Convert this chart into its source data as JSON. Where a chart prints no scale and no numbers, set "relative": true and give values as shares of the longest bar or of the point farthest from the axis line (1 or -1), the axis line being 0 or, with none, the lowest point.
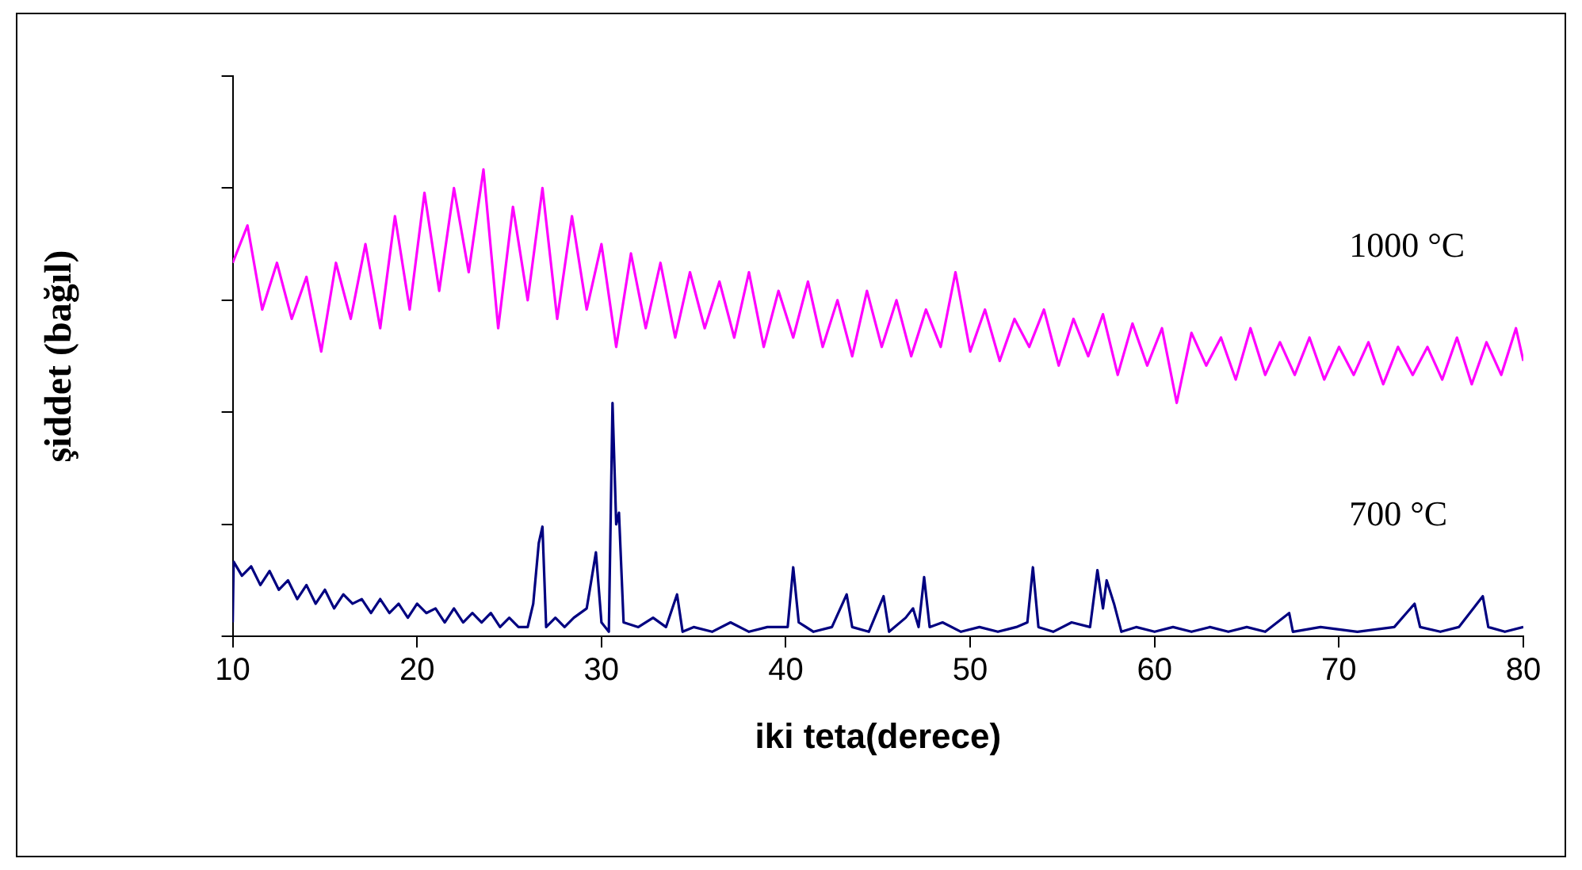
{
  "chart_data": {
    "type": "line",
    "relative": true,
    "xlabel": "iki teta(derece)",
    "ylabel": "şiddet (bağıl)",
    "xlim": [
      10,
      80
    ],
    "xticks": [
      10,
      20,
      30,
      40,
      50,
      60,
      70,
      80
    ],
    "tick_labels": "x",
    "grid": false,
    "legend": false,
    "marker": "none",
    "line_style": "solid",
    "series": [
      {
        "name": "1000 °C",
        "color": "#ff00ff",
        "x": [
          10,
          10.8,
          11.6,
          12.4,
          13.2,
          14.0,
          14.8,
          15.6,
          16.4,
          17.2,
          18.0,
          18.8,
          19.6,
          20.4,
          21.2,
          22.0,
          22.8,
          23.6,
          24.4,
          25.2,
          26.0,
          26.8,
          27.6,
          28.4,
          29.2,
          30.0,
          30.8,
          31.6,
          32.4,
          33.2,
          34.0,
          34.8,
          35.6,
          36.4,
          37.2,
          38.0,
          38.8,
          39.6,
          40.4,
          41.2,
          42.0,
          42.8,
          43.6,
          44.4,
          45.2,
          46.0,
          46.8,
          47.6,
          48.4,
          49.2,
          50.0,
          50.8,
          51.6,
          52.4,
          53.2,
          54.0,
          54.8,
          55.6,
          56.4,
          57.2,
          58.0,
          58.8,
          59.6,
          60.4,
          61.2,
          62.0,
          62.8,
          63.6,
          64.4,
          65.2,
          66.0,
          66.8,
          67.6,
          68.4,
          69.2,
          70.0,
          70.8,
          71.6,
          72.4,
          73.2,
          74.0,
          74.8,
          75.6,
          76.4,
          77.2,
          78.0,
          78.8,
          79.6,
          80
        ],
        "values": [
          0.8,
          0.88,
          0.7,
          0.8,
          0.68,
          0.77,
          0.61,
          0.8,
          0.68,
          0.84,
          0.66,
          0.9,
          0.7,
          0.95,
          0.74,
          0.96,
          0.78,
          1.0,
          0.66,
          0.92,
          0.72,
          0.96,
          0.68,
          0.9,
          0.7,
          0.84,
          0.62,
          0.82,
          0.66,
          0.8,
          0.64,
          0.78,
          0.66,
          0.76,
          0.64,
          0.78,
          0.62,
          0.74,
          0.64,
          0.76,
          0.62,
          0.72,
          0.6,
          0.74,
          0.62,
          0.72,
          0.6,
          0.7,
          0.62,
          0.78,
          0.61,
          0.7,
          0.59,
          0.68,
          0.62,
          0.7,
          0.58,
          0.68,
          0.6,
          0.69,
          0.56,
          0.67,
          0.58,
          0.66,
          0.5,
          0.65,
          0.58,
          0.64,
          0.55,
          0.66,
          0.56,
          0.63,
          0.56,
          0.64,
          0.55,
          0.62,
          0.56,
          0.63,
          0.54,
          0.62,
          0.56,
          0.62,
          0.55,
          0.64,
          0.54,
          0.63,
          0.56,
          0.66,
          0.59
        ]
      },
      {
        "name": "700 °C",
        "color": "#000080",
        "x": [
          10,
          10.05,
          10.5,
          11,
          11.5,
          12,
          12.5,
          13,
          13.5,
          14,
          14.5,
          15,
          15.5,
          16,
          16.5,
          17,
          17.5,
          18,
          18.5,
          19,
          19.5,
          20,
          20.5,
          21,
          21.5,
          22,
          22.5,
          23,
          23.5,
          24,
          24.5,
          25,
          25.5,
          26,
          26.3,
          26.6,
          26.8,
          27,
          27.5,
          28,
          28.5,
          29.2,
          29.7,
          30.0,
          30.4,
          30.6,
          30.8,
          30.95,
          31.2,
          32,
          32.8,
          33.5,
          34.1,
          34.4,
          35,
          36,
          37,
          38,
          39,
          40.1,
          40.4,
          40.7,
          41.5,
          42.5,
          43.3,
          43.6,
          44.5,
          45.3,
          45.6,
          46.5,
          46.9,
          47.2,
          47.5,
          47.8,
          48.5,
          49.5,
          50.5,
          51.5,
          52.5,
          53.1,
          53.4,
          53.7,
          54.5,
          55.5,
          56.5,
          56.9,
          57.2,
          57.4,
          57.8,
          58.2,
          59,
          60,
          61,
          62,
          63,
          64,
          65,
          66,
          67.3,
          67.5,
          69,
          71,
          73,
          74.1,
          74.4,
          75.5,
          76.5,
          77.8,
          78.1,
          79,
          80
        ],
        "values": [
          0.03,
          0.16,
          0.13,
          0.15,
          0.11,
          0.14,
          0.1,
          0.12,
          0.08,
          0.11,
          0.07,
          0.1,
          0.06,
          0.09,
          0.07,
          0.08,
          0.05,
          0.08,
          0.05,
          0.07,
          0.04,
          0.07,
          0.05,
          0.06,
          0.03,
          0.06,
          0.03,
          0.05,
          0.03,
          0.05,
          0.02,
          0.04,
          0.02,
          0.02,
          0.07,
          0.2,
          0.235,
          0.02,
          0.04,
          0.02,
          0.04,
          0.06,
          0.18,
          0.03,
          0.01,
          0.5,
          0.24,
          0.265,
          0.03,
          0.02,
          0.04,
          0.02,
          0.09,
          0.01,
          0.02,
          0.01,
          0.03,
          0.01,
          0.02,
          0.02,
          0.148,
          0.03,
          0.01,
          0.02,
          0.09,
          0.02,
          0.01,
          0.086,
          0.01,
          0.04,
          0.06,
          0.02,
          0.127,
          0.02,
          0.03,
          0.01,
          0.02,
          0.01,
          0.02,
          0.03,
          0.148,
          0.02,
          0.01,
          0.03,
          0.02,
          0.142,
          0.06,
          0.12,
          0.07,
          0.01,
          0.02,
          0.01,
          0.02,
          0.01,
          0.02,
          0.01,
          0.02,
          0.01,
          0.05,
          0.01,
          0.02,
          0.01,
          0.02,
          0.07,
          0.02,
          0.01,
          0.02,
          0.086,
          0.02,
          0.01,
          0.02
        ]
      }
    ]
  }
}
